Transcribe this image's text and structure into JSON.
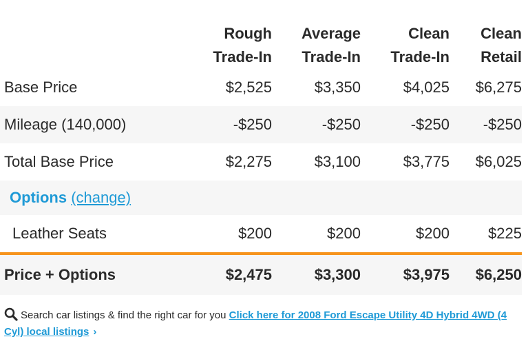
{
  "columns": [
    {
      "line1": "Rough",
      "line2": "Trade-In"
    },
    {
      "line1": "Average",
      "line2": "Trade-In"
    },
    {
      "line1": "Clean",
      "line2": "Trade-In"
    },
    {
      "line1": "Clean",
      "line2": "Retail"
    }
  ],
  "rows": {
    "base_price": {
      "label": "Base Price",
      "values": [
        "$2,525",
        "$3,350",
        "$4,025",
        "$6,275"
      ]
    },
    "mileage": {
      "label": "Mileage (140,000)",
      "values": [
        "-$250",
        "-$250",
        "-$250",
        "-$250"
      ]
    },
    "total_base": {
      "label": "Total Base Price",
      "values": [
        "$2,275",
        "$3,100",
        "$3,775",
        "$6,025"
      ]
    }
  },
  "options": {
    "title": "Options",
    "change_link": "(change)",
    "items": [
      {
        "label": "Leather Seats",
        "values": [
          "$200",
          "$200",
          "$200",
          "$225"
        ]
      }
    ]
  },
  "total": {
    "label": "Price + Options",
    "values": [
      "$2,475",
      "$3,300",
      "$3,975",
      "$6,250"
    ]
  },
  "footer": {
    "text": "Search car listings & find the right car for you",
    "link": "Click here for 2008 Ford Escape Utility 4D Hybrid 4WD (4 Cyl) local listings",
    "chevron": "›"
  },
  "colors": {
    "accent": "#1f9ad6",
    "divider": "#f7941d",
    "shade": "#f6f6f6"
  },
  "icons": {
    "footer": "search-icon"
  }
}
